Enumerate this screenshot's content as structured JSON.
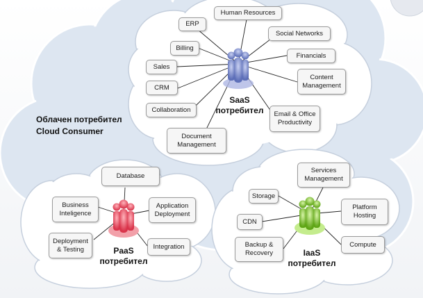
{
  "consumer": {
    "title_bg": "Облачен потребител",
    "title_en": "Cloud Consumer"
  },
  "saas": {
    "label_line1": "SaaS",
    "label_line2": "потребител",
    "color": "#7f8fcf",
    "items": {
      "human_resources": "Human Resources",
      "erp": "ERP",
      "social_networks": "Social Networks",
      "billing": "Billing",
      "financials": "Financials",
      "sales": "Sales",
      "content_management": "Content Management",
      "crm": "CRM",
      "collaboration": "Collaboration",
      "email_office": "Email & Office Productivity",
      "document_management": "Document Management"
    }
  },
  "paas": {
    "label_line1": "PaaS",
    "label_line2": "потребител",
    "color": "#e85a6a",
    "items": {
      "database": "Database",
      "business_intelligence": "Business Inteligence",
      "application_deployment": "Application Deployment",
      "deployment_testing": "Deployment & Testing",
      "integration": "Integration"
    }
  },
  "iaas": {
    "label_line1": "IaaS",
    "label_line2": "потребител",
    "color": "#8ed13a",
    "items": {
      "services_management": "Services Management",
      "storage": "Storage",
      "platform_hosting": "Platform Hosting",
      "cdn": "CDN",
      "backup_recovery": "Backup & Recovery",
      "compute": "Compute"
    }
  }
}
